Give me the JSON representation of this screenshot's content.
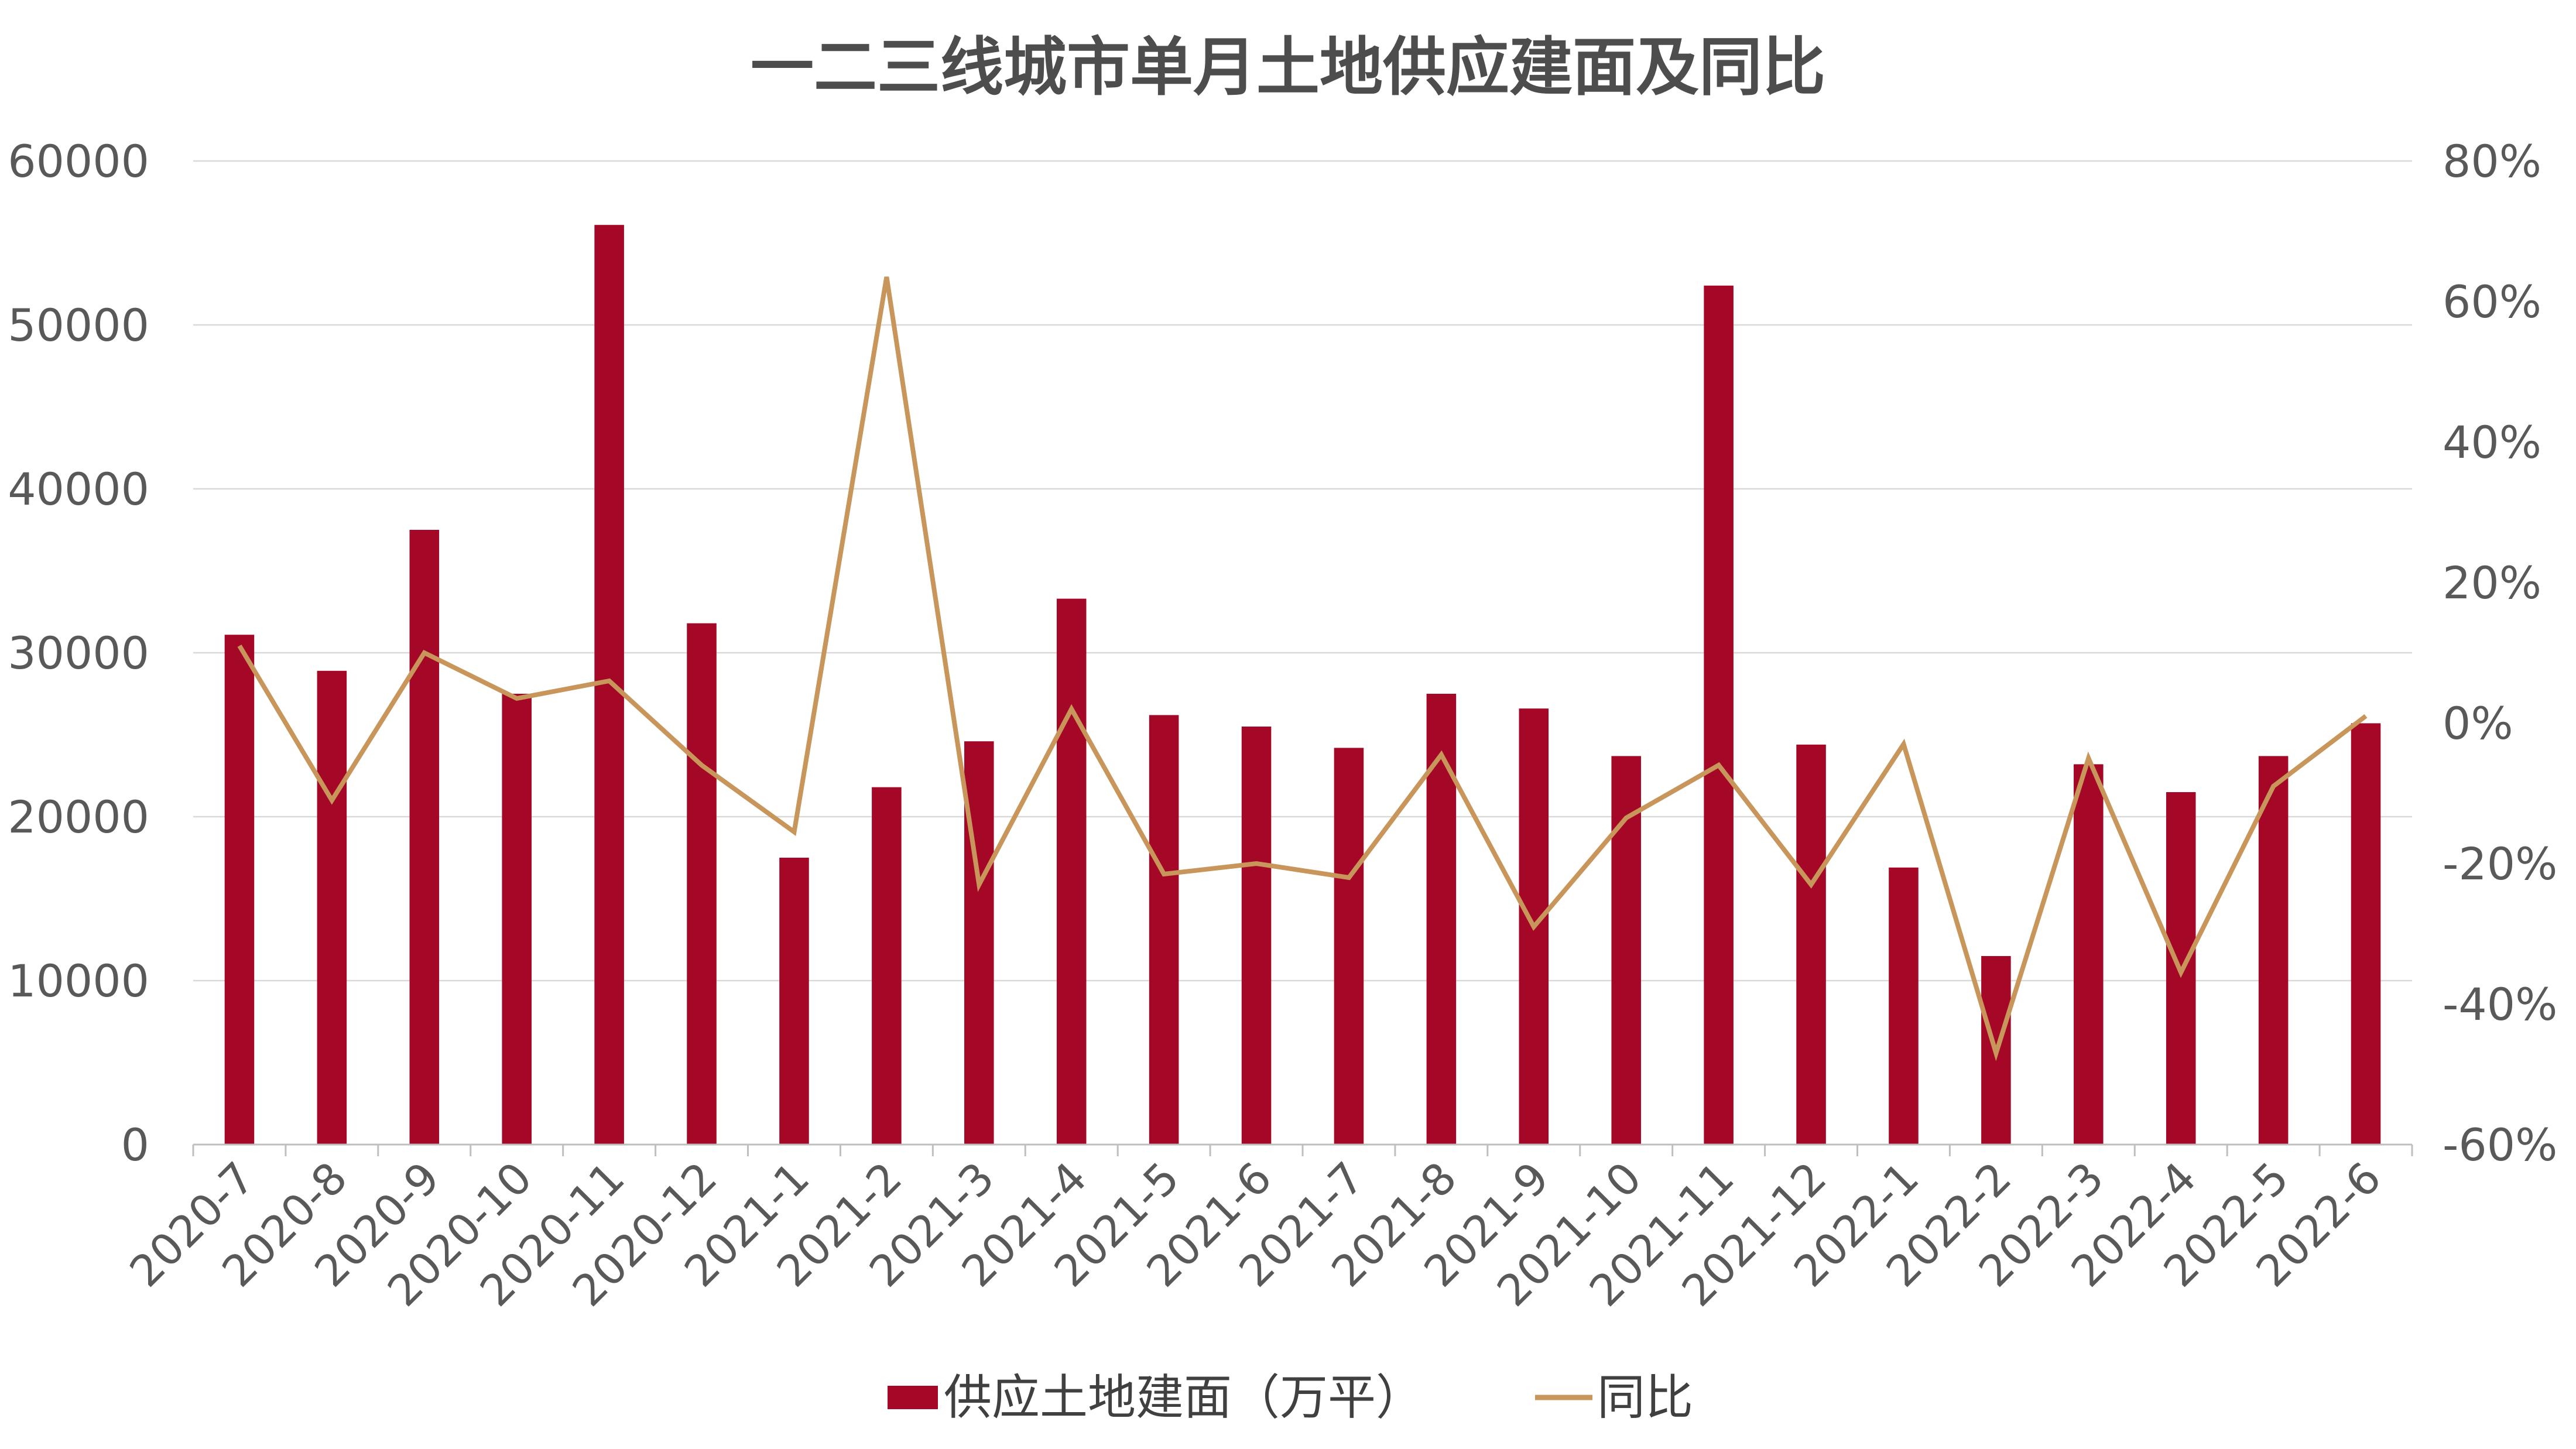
{
  "chart_data": {
    "type": "bar+line",
    "title": "一二三线城市单月土地供应建面及同比",
    "categories": [
      "2020-7",
      "2020-8",
      "2020-9",
      "2020-10",
      "2020-11",
      "2020-12",
      "2021-1",
      "2021-2",
      "2021-3",
      "2021-4",
      "2021-5",
      "2021-6",
      "2021-7",
      "2021-8",
      "2021-9",
      "2021-10",
      "2021-11",
      "2021-12",
      "2022-1",
      "2022-2",
      "2022-3",
      "2022-4",
      "2022-5",
      "2022-6"
    ],
    "series": [
      {
        "name": "供应土地建面（万平）",
        "type": "bar",
        "axis": "left",
        "color": "#A50726",
        "values": [
          31100,
          28900,
          37500,
          27500,
          56100,
          31800,
          17500,
          21800,
          24600,
          33300,
          26200,
          25500,
          24200,
          27500,
          26600,
          23700,
          52400,
          24400,
          16900,
          11500,
          23200,
          21500,
          23700,
          25700
        ]
      },
      {
        "name": "同比",
        "type": "line",
        "axis": "right",
        "color": "#C8955A",
        "values": [
          11,
          -11,
          10,
          3.5,
          6,
          -6,
          -15.5,
          63.5,
          -23,
          2,
          -21.5,
          -20,
          -22,
          -4.5,
          -29,
          -13.5,
          -6,
          -23,
          -3,
          -47,
          -5,
          -35.5,
          -9,
          1
        ]
      }
    ],
    "left_axis": {
      "ylim": [
        0,
        60000
      ],
      "ticks": [
        "0",
        "10000",
        "20000",
        "30000",
        "40000",
        "50000",
        "60000"
      ]
    },
    "right_axis": {
      "ylim": [
        -60,
        80
      ],
      "ticks": [
        "-60%",
        "-40%",
        "-20%",
        "0%",
        "20%",
        "40%",
        "60%",
        "80%"
      ]
    },
    "grid": true,
    "legend": {
      "position": "bottom",
      "items": [
        "供应土地建面（万平）",
        "同比"
      ]
    }
  }
}
